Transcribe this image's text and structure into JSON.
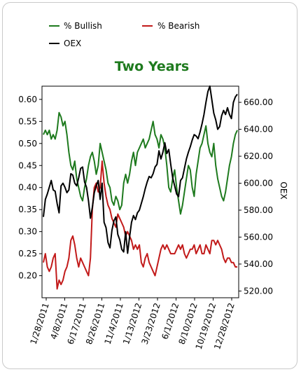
{
  "chart_data": {
    "type": "line",
    "title": "Two Years",
    "xlabel": "",
    "ylabel": "",
    "y2label": "OEX",
    "ylim": [
      0.15,
      0.63
    ],
    "y2lim": [
      515,
      672
    ],
    "yticks": [
      "0.20",
      "0.25",
      "0.30",
      "0.35",
      "0.40",
      "0.45",
      "0.50",
      "0.55",
      "0.60"
    ],
    "y2ticks": [
      "520.00",
      "540.00",
      "560.00",
      "580.00",
      "600.00",
      "620.00",
      "640.00",
      "660.00"
    ],
    "xticks": [
      "1/28/2011",
      "4/8/2011",
      "6/17/2011",
      "8/26/2011",
      "11/4/2011",
      "1/13/2012",
      "3/23/2012",
      "6/1/2012",
      "8/10/2012",
      "10/19/2012",
      "12/28/2012"
    ],
    "legend": {
      "placement": "top",
      "entries": [
        "% Bullish",
        "% Bearish",
        "OEX"
      ]
    },
    "grid": false,
    "colors": {
      "bullish": "#1e7a1e",
      "bearish": "#c21a1a",
      "oex": "#000000",
      "title": "#1e7a1e"
    },
    "series": [
      {
        "name": "% Bullish",
        "axis": "left",
        "color": "#1e7a1e",
        "values": [
          0.52,
          0.53,
          0.52,
          0.53,
          0.51,
          0.52,
          0.51,
          0.53,
          0.57,
          0.56,
          0.54,
          0.55,
          0.52,
          0.48,
          0.45,
          0.44,
          0.46,
          0.42,
          0.4,
          0.38,
          0.37,
          0.4,
          0.42,
          0.45,
          0.47,
          0.48,
          0.46,
          0.43,
          0.45,
          0.5,
          0.48,
          0.46,
          0.44,
          0.41,
          0.4,
          0.37,
          0.36,
          0.38,
          0.37,
          0.35,
          0.36,
          0.41,
          0.43,
          0.41,
          0.43,
          0.46,
          0.48,
          0.45,
          0.48,
          0.49,
          0.5,
          0.51,
          0.49,
          0.5,
          0.51,
          0.53,
          0.55,
          0.52,
          0.51,
          0.49,
          0.52,
          0.51,
          0.49,
          0.45,
          0.4,
          0.39,
          0.42,
          0.44,
          0.4,
          0.37,
          0.34,
          0.36,
          0.39,
          0.42,
          0.45,
          0.44,
          0.4,
          0.38,
          0.43,
          0.46,
          0.49,
          0.5,
          0.52,
          0.54,
          0.5,
          0.48,
          0.47,
          0.5,
          0.45,
          0.42,
          0.4,
          0.38,
          0.37,
          0.39,
          0.42,
          0.45,
          0.47,
          0.5,
          0.52,
          0.53
        ]
      },
      {
        "name": "% Bearish",
        "axis": "left",
        "color": "#c21a1a",
        "values": [
          0.23,
          0.25,
          0.22,
          0.21,
          0.22,
          0.24,
          0.25,
          0.17,
          0.19,
          0.18,
          0.19,
          0.21,
          0.22,
          0.24,
          0.28,
          0.29,
          0.27,
          0.24,
          0.22,
          0.24,
          0.23,
          0.22,
          0.21,
          0.2,
          0.24,
          0.35,
          0.4,
          0.41,
          0.39,
          0.4,
          0.46,
          0.41,
          0.38,
          0.36,
          0.35,
          0.33,
          0.32,
          0.31,
          0.34,
          0.33,
          0.32,
          0.31,
          0.29,
          0.3,
          0.29,
          0.28,
          0.26,
          0.27,
          0.26,
          0.27,
          0.23,
          0.22,
          0.24,
          0.25,
          0.23,
          0.22,
          0.21,
          0.2,
          0.22,
          0.24,
          0.26,
          0.27,
          0.26,
          0.27,
          0.26,
          0.25,
          0.25,
          0.25,
          0.26,
          0.27,
          0.26,
          0.27,
          0.25,
          0.24,
          0.25,
          0.26,
          0.26,
          0.27,
          0.25,
          0.26,
          0.27,
          0.25,
          0.25,
          0.27,
          0.26,
          0.25,
          0.28,
          0.28,
          0.27,
          0.28,
          0.27,
          0.26,
          0.24,
          0.23,
          0.24,
          0.24,
          0.23,
          0.23,
          0.22,
          0.22
        ]
      },
      {
        "name": "OEX",
        "axis": "right",
        "color": "#000000",
        "values": [
          575,
          588,
          592,
          597,
          602,
          595,
          594,
          585,
          578,
          598,
          600,
          597,
          593,
          595,
          607,
          606,
          600,
          598,
          604,
          611,
          612,
          601,
          597,
          587,
          574,
          582,
          593,
          598,
          602,
          588,
          600,
          571,
          567,
          556,
          552,
          565,
          572,
          575,
          562,
          558,
          551,
          549,
          564,
          548,
          560,
          571,
          576,
          573,
          578,
          580,
          585,
          590,
          596,
          601,
          605,
          604,
          607,
          612,
          614,
          624,
          618,
          623,
          630,
          622,
          625,
          614,
          604,
          598,
          592,
          590,
          602,
          604,
          611,
          618,
          623,
          627,
          632,
          636,
          635,
          633,
          638,
          644,
          651,
          660,
          668,
          672,
          662,
          652,
          647,
          640,
          642,
          650,
          654,
          651,
          656,
          651,
          648,
          660,
          664,
          666
        ]
      }
    ]
  }
}
